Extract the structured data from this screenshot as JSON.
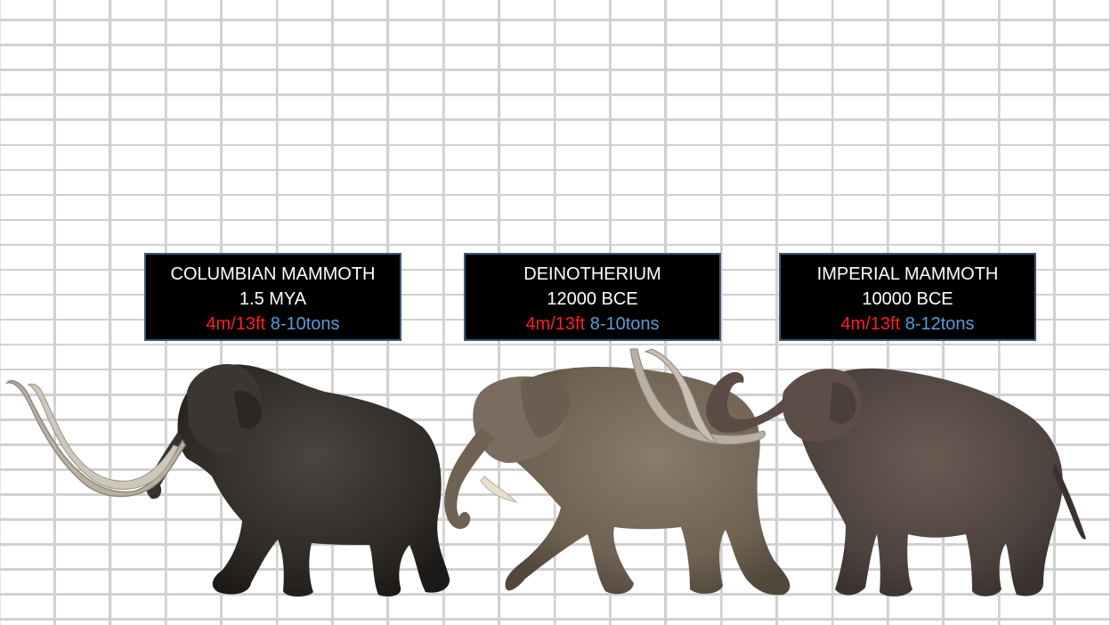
{
  "animals": [
    {
      "name": "COLUMBIAN MAMMOTH",
      "era": "1.5 MYA",
      "height": "4m/13ft",
      "weight": "8-10tons"
    },
    {
      "name": "DEINOTHERIUM",
      "era": "12000 BCE",
      "height": "4m/13ft",
      "weight": "8-10tons"
    },
    {
      "name": "IMPERIAL MAMMOTH",
      "era": "10000 BCE",
      "height": "4m/13ft",
      "weight": "8-12tons"
    }
  ],
  "colors": {
    "height_text": "#ff2020",
    "weight_text": "#5b9bd5",
    "box_background": "#000000",
    "grid_line": "#d3d3d3"
  }
}
